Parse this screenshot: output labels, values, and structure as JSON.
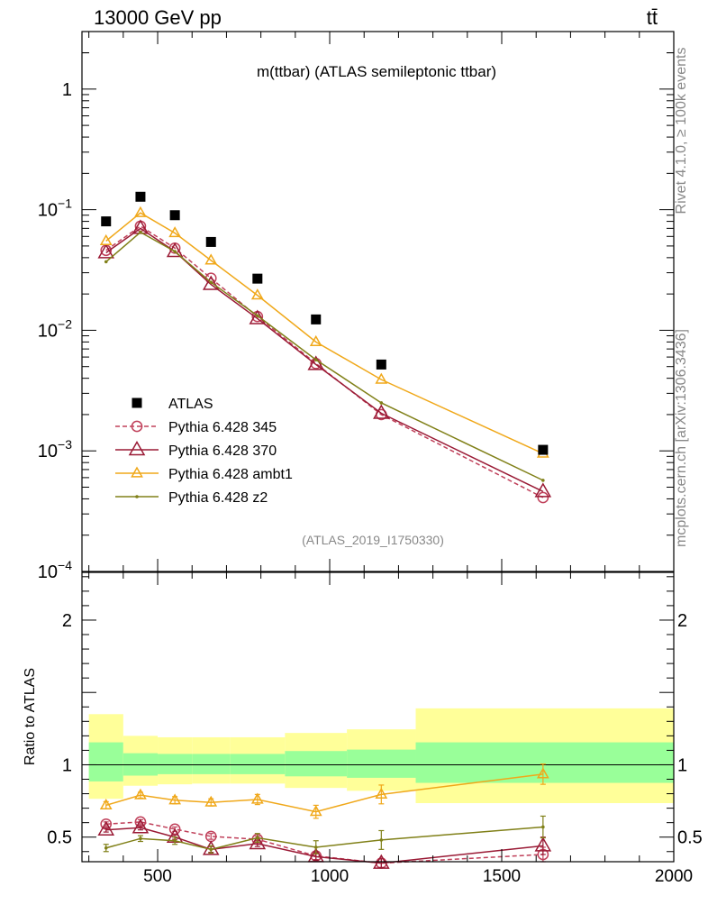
{
  "chart_data": {
    "type": "line",
    "header_left": "13000 GeV pp",
    "header_right": "tt̄",
    "title": "m(ttbar) (ATLAS semileptonic ttbar)",
    "watermark": "(ATLAS_2019_I1750330)",
    "side_text_top": "Rivet 4.1.0, ≥ 100k events",
    "side_text_bottom": "mcplots.cern.ch [arXiv:1306.3436]",
    "ratio_ylabel": "Ratio to ATLAS",
    "xlim": [
      280,
      2000
    ],
    "x_ticks": [
      "500",
      "1000",
      "1500",
      "2000"
    ],
    "main_ylim": [
      0.0001,
      3
    ],
    "main_yscale": "log",
    "main_y_ticks": [
      {
        "mantissa": "1",
        "exp": ""
      },
      {
        "mantissa": "10",
        "exp": "−1"
      },
      {
        "mantissa": "10",
        "exp": "−2"
      },
      {
        "mantissa": "10",
        "exp": "−3"
      },
      {
        "mantissa": "10",
        "exp": "−4"
      }
    ],
    "ratio_ylim": [
      0.33,
      2.33
    ],
    "ratio_y_ticks": [
      "2",
      "1",
      "0.5"
    ],
    "x_points": [
      350,
      450,
      550,
      655,
      790,
      960,
      1150,
      1620
    ],
    "bin_edges": [
      300,
      400,
      500,
      600,
      710,
      870,
      1050,
      1250,
      2000
    ],
    "data": {
      "name": "ATLAS",
      "values": [
        0.08,
        0.128,
        0.09,
        0.054,
        0.0268,
        0.0123,
        0.0052,
        0.00102
      ],
      "band_inner_lo": [
        0.885,
        0.925,
        0.935,
        0.935,
        0.935,
        0.92,
        0.91,
        0.875
      ],
      "band_inner_hi": [
        1.155,
        1.08,
        1.075,
        1.075,
        1.075,
        1.095,
        1.105,
        1.155
      ],
      "band_outer_lo": [
        0.765,
        0.855,
        0.865,
        0.87,
        0.87,
        0.84,
        0.82,
        0.735
      ],
      "band_outer_hi": [
        1.35,
        1.2,
        1.19,
        1.19,
        1.19,
        1.22,
        1.245,
        1.39
      ]
    },
    "series": [
      {
        "name": "Pythia 6.428 345",
        "color": "#c0405a",
        "dashed": true,
        "marker": "circle",
        "values": [
          0.046,
          0.073,
          0.048,
          0.027,
          0.013,
          0.0053,
          0.002,
          0.00041
        ],
        "ratio": [
          0.59,
          0.605,
          0.555,
          0.505,
          0.485,
          0.37,
          0.32,
          0.38
        ],
        "ratio_err": [
          0.015,
          0.015,
          0.015,
          0.02,
          0.02,
          0.025,
          0.03,
          0.05
        ]
      },
      {
        "name": "Pythia 6.428 370",
        "color": "#9a1a35",
        "dashed": false,
        "marker": "triangle",
        "values": [
          0.044,
          0.07,
          0.045,
          0.024,
          0.0125,
          0.0052,
          0.00205,
          0.00046
        ],
        "ratio": [
          0.55,
          0.565,
          0.5,
          0.415,
          0.455,
          0.365,
          0.32,
          0.44
        ],
        "ratio_err": [
          0.015,
          0.015,
          0.015,
          0.02,
          0.02,
          0.025,
          0.03,
          0.06
        ]
      },
      {
        "name": "Pythia 6.428 ambt1",
        "color": "#f0a81a",
        "dashed": false,
        "marker": "triangle",
        "values": [
          0.055,
          0.094,
          0.064,
          0.038,
          0.0195,
          0.008,
          0.0039,
          0.00095
        ],
        "ratio": [
          0.72,
          0.79,
          0.755,
          0.74,
          0.76,
          0.675,
          0.795,
          0.935
        ],
        "ratio_err": [
          0.025,
          0.02,
          0.025,
          0.025,
          0.035,
          0.045,
          0.065,
          0.07
        ]
      },
      {
        "name": "Pythia 6.428 z2",
        "color": "#808018",
        "dashed": false,
        "marker": "dot",
        "values": [
          0.037,
          0.065,
          0.045,
          0.025,
          0.0132,
          0.0057,
          0.0025,
          0.00057
        ],
        "ratio": [
          0.425,
          0.49,
          0.475,
          0.415,
          0.495,
          0.43,
          0.48,
          0.57
        ],
        "ratio_err": [
          0.025,
          0.02,
          0.025,
          0.025,
          0.03,
          0.045,
          0.065,
          0.075
        ]
      }
    ]
  }
}
